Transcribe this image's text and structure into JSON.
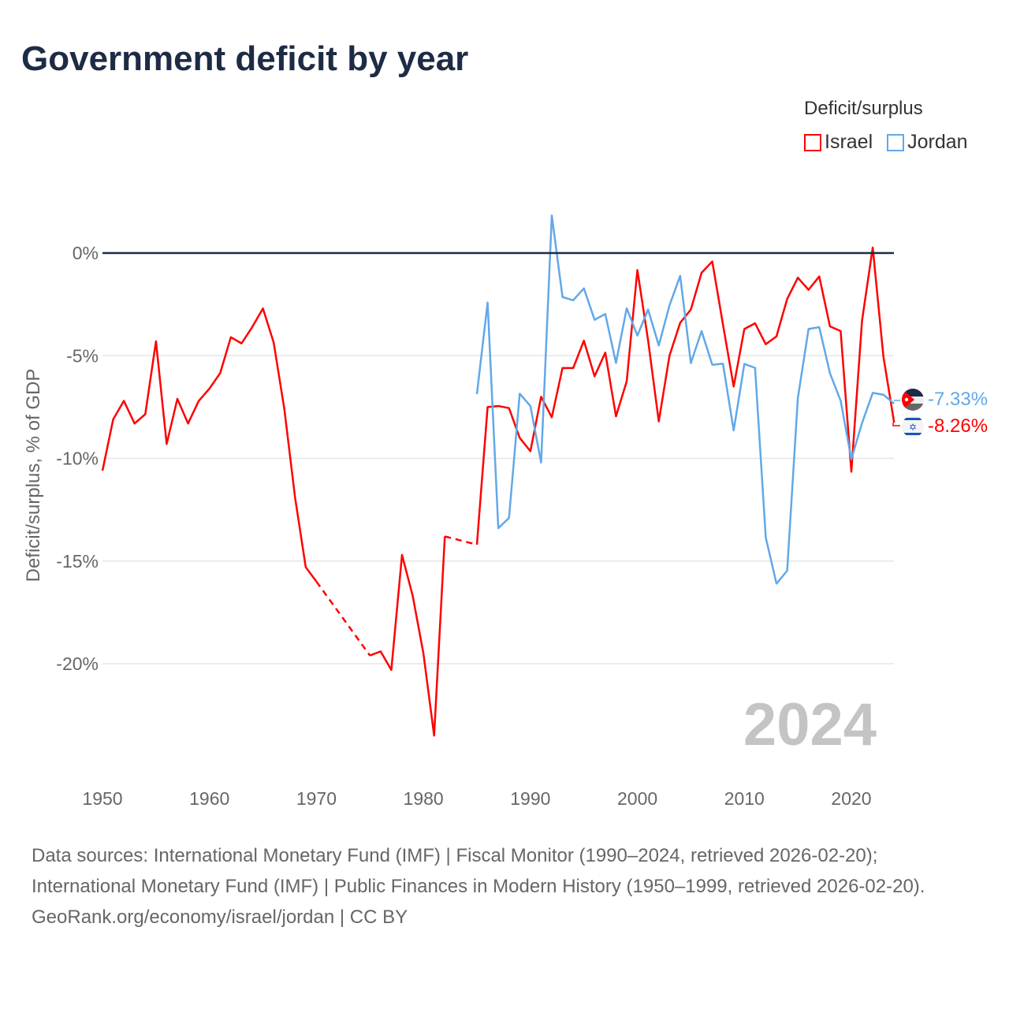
{
  "title": "Government deficit by year",
  "legend": {
    "title": "Deficit/surplus",
    "items": [
      {
        "name": "Israel",
        "color": "#ff0000"
      },
      {
        "name": "Jordan",
        "color": "#62a8e8"
      }
    ]
  },
  "current_year_label": "2024",
  "end_labels": {
    "jordan": "-7.33%",
    "israel": "-8.26%"
  },
  "footer": {
    "sources": "Data sources: International Monetary Fund (IMF) | Fiscal Monitor (1990–2024, retrieved 2026-02-20); International Monetary Fund (IMF) | Public Finances in Modern History (1950–1999, retrieved 2026-02-20).",
    "link": "GeoRank.org/economy/israel/jordan",
    "license": " | CC BY"
  },
  "chart_data": {
    "type": "line",
    "title": "Government deficit by year",
    "xlabel": "",
    "ylabel": "Deficit/surplus, % of GDP",
    "xlim": [
      1950,
      2024
    ],
    "ylim": [
      -25,
      2
    ],
    "x_ticks": [
      "1950",
      "1960",
      "1970",
      "1980",
      "1990",
      "2000",
      "2010",
      "2020"
    ],
    "y_ticks": [
      {
        "v": 0,
        "label": "0%"
      },
      {
        "v": -5,
        "label": "-5%"
      },
      {
        "v": -10,
        "label": "-10%"
      },
      {
        "v": -15,
        "label": "-15%"
      },
      {
        "v": -20,
        "label": "-20%"
      }
    ],
    "legend_position": "top-right",
    "series": [
      {
        "name": "Israel",
        "color": "#ff0000",
        "start": 1950,
        "values": [
          -10.6,
          -8.1,
          -7.2,
          -8.3,
          -7.85,
          -4.3,
          -9.3,
          -7.1,
          -8.3,
          -7.2,
          -6.6,
          -5.85,
          -4.1,
          -4.4,
          -3.6,
          -2.7,
          -4.35,
          -7.6,
          -11.9,
          -15.3,
          -16.0,
          null,
          null,
          null,
          null,
          -19.6,
          -19.4,
          -20.3,
          -14.7,
          -16.7,
          -19.5,
          -23.5,
          -13.8,
          null,
          null,
          -14.2,
          -7.5,
          -7.45,
          -7.55,
          -9.0,
          -9.65,
          -7.0,
          -8.0,
          -5.6,
          -5.6,
          -4.27,
          -6.0,
          -4.85,
          -7.95,
          -6.25,
          -0.83,
          -4.25,
          -8.2,
          -5.0,
          -3.4,
          -2.75,
          -0.96,
          -0.41,
          -3.48,
          -6.5,
          -3.7,
          -3.42,
          -4.44,
          -4.06,
          -2.24,
          -1.2,
          -1.79,
          -1.14,
          -3.57,
          -3.8,
          -10.65,
          -3.29,
          0.27,
          -5.05,
          -8.26
        ]
      },
      {
        "name": "Jordan",
        "color": "#62a8e8",
        "start": 1985,
        "values": [
          -6.87,
          -2.41,
          -13.4,
          -12.9,
          -6.85,
          -7.45,
          -10.2,
          1.83,
          -2.14,
          -2.3,
          -1.72,
          -3.25,
          -2.97,
          -5.35,
          -2.69,
          -4.02,
          -2.75,
          -4.5,
          -2.55,
          -1.11,
          -5.36,
          -3.8,
          -5.44,
          -5.39,
          -8.64,
          -5.4,
          -5.59,
          -13.85,
          -16.1,
          -15.47,
          -7.06,
          -3.7,
          -3.61,
          -5.85,
          -7.19,
          -10.04,
          -8.28,
          -6.81,
          -6.9,
          -7.33
        ]
      }
    ]
  }
}
